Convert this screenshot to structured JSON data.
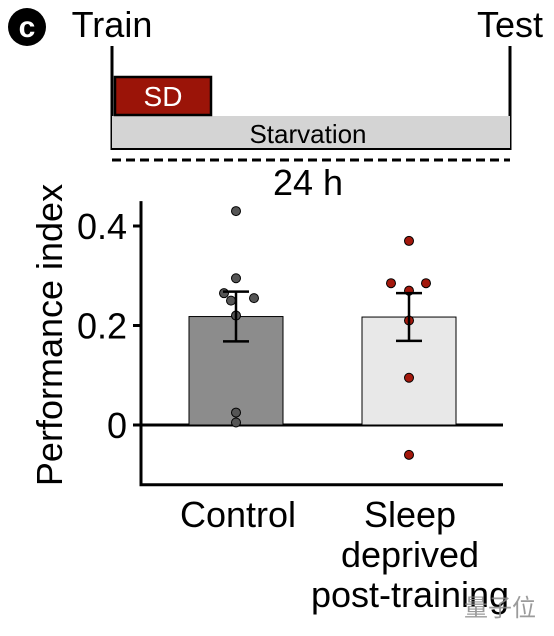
{
  "panel_label": "c",
  "protocol": {
    "start_label": "Train",
    "end_label": "Test",
    "sd_label": "SD",
    "starvation_label": "Starvation",
    "duration_label": "24 h"
  },
  "colors": {
    "sd_fill": "#9b1408",
    "starvation_fill": "#d4d4d4",
    "control_bar": "#8c8c8c",
    "sleep_bar": "#e8e8e8",
    "control_dot": "#555555",
    "sleep_dot": "#a3180c"
  },
  "watermark": "量子位",
  "chart_data": {
    "type": "bar",
    "ylabel": "Performance index",
    "ylim": [
      -0.12,
      0.45
    ],
    "yticks": [
      0,
      0.2,
      0.4
    ],
    "ytick_labels": [
      "0",
      "0.2",
      "0.4"
    ],
    "categories": [
      "Control",
      "Sleep deprived post-training"
    ],
    "category_lines": [
      [
        "Control"
      ],
      [
        "Sleep",
        "deprived",
        "post-training"
      ]
    ],
    "values": [
      0.218,
      0.217
    ],
    "sem": [
      0.05,
      0.048
    ],
    "points": [
      [
        0.43,
        0.295,
        0.265,
        0.255,
        0.25,
        0.22,
        0.025,
        0.005
      ],
      [
        0.37,
        0.285,
        0.285,
        0.27,
        0.21,
        0.095,
        -0.06
      ]
    ]
  }
}
